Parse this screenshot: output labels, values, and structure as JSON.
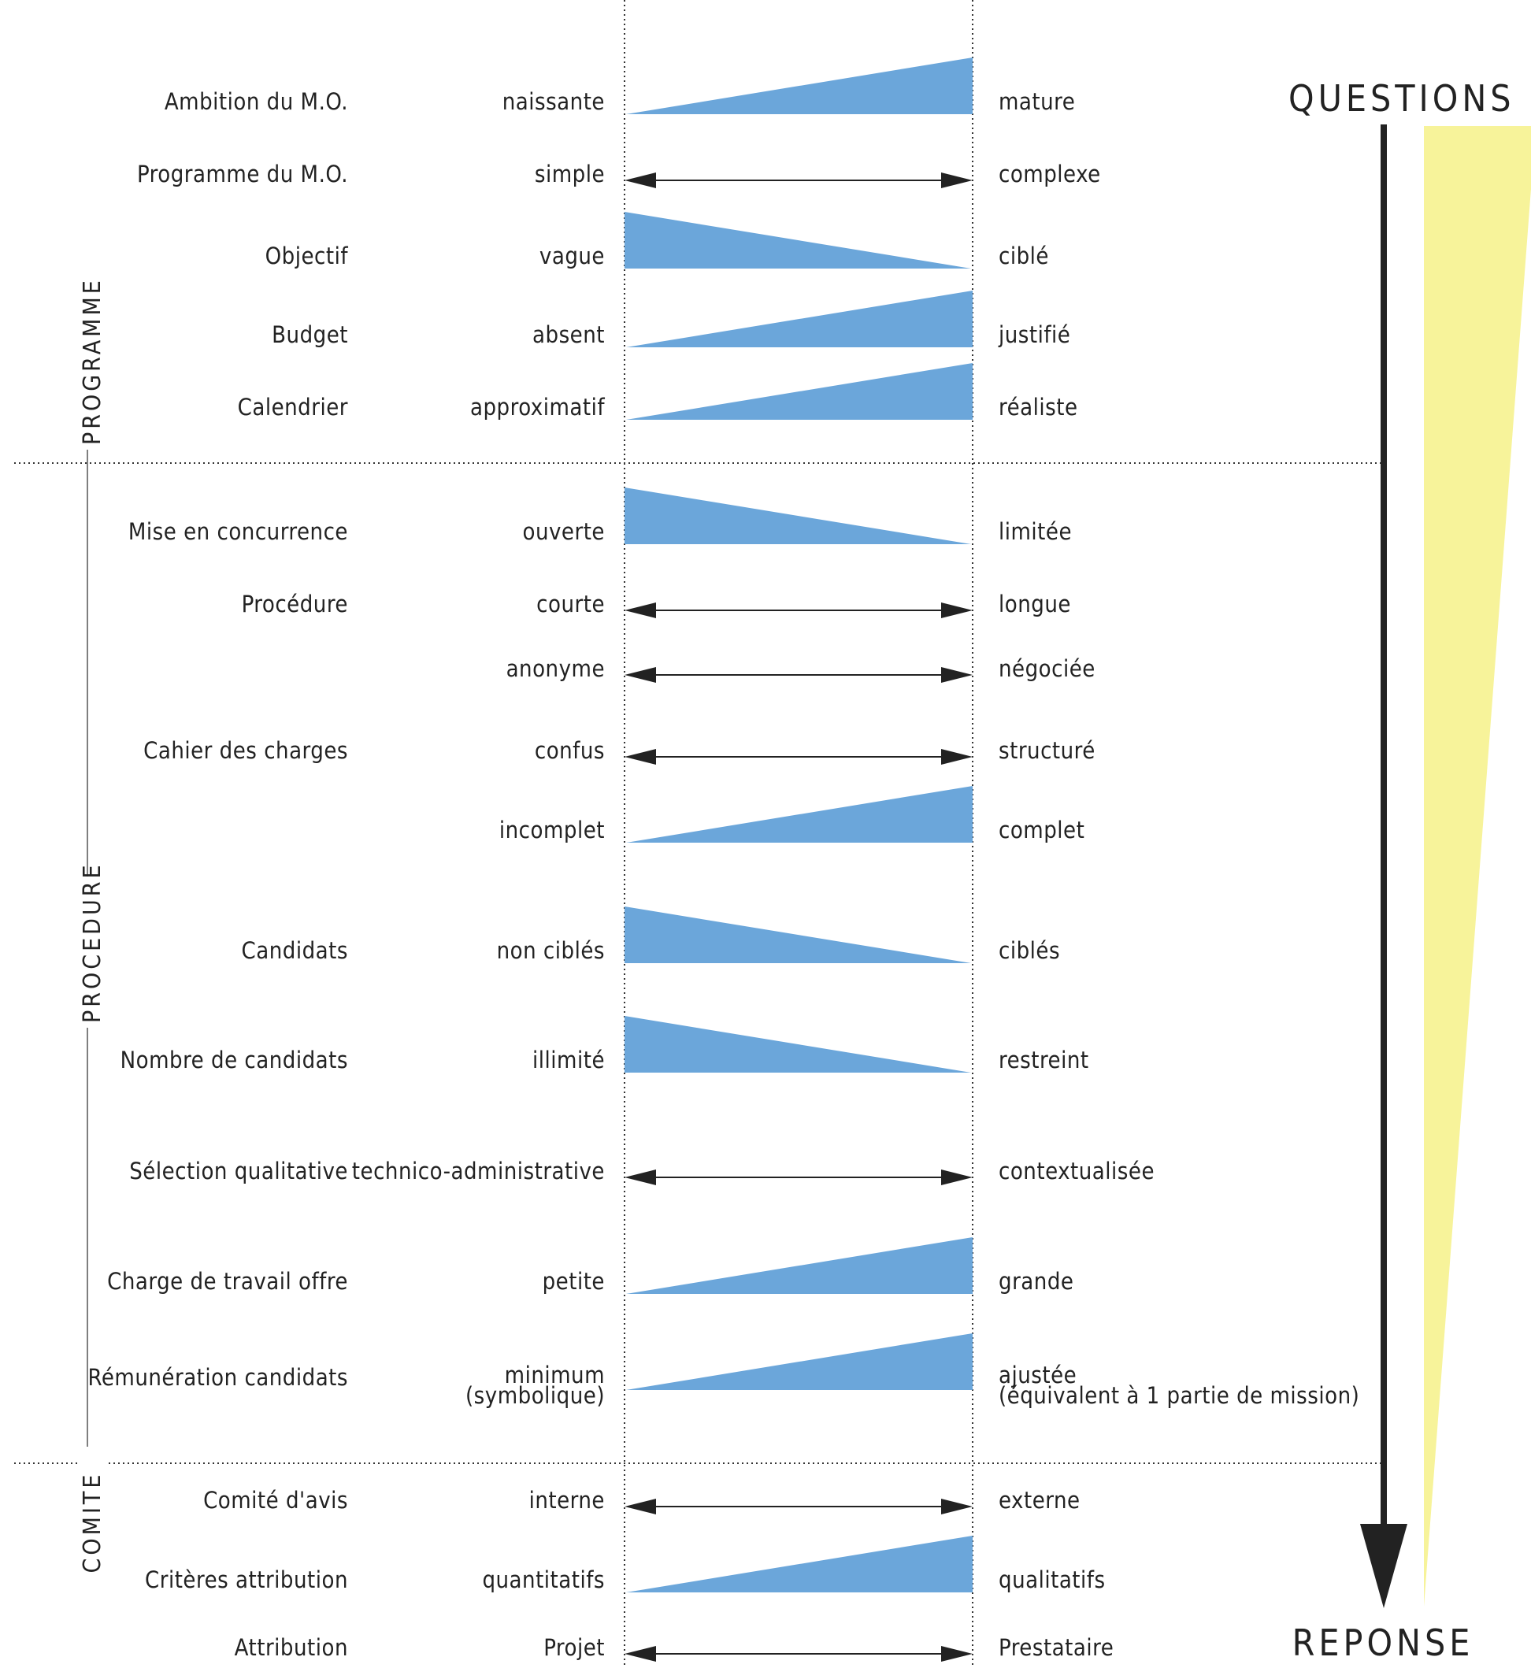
{
  "colors": {
    "wedge": "#6ba6da",
    "cone": "#f7f39a",
    "line": "#222222"
  },
  "axis": {
    "top": "QUESTIONS",
    "bottom": "REPONSE"
  },
  "sections": [
    {
      "key": "programme",
      "label": "PROGRAMME"
    },
    {
      "key": "procedure",
      "label": "PROCEDURE"
    },
    {
      "key": "comite",
      "label": "COMITE"
    }
  ],
  "rows": [
    {
      "criterion": "Ambition du M.O.",
      "left": "naissante",
      "right": "mature",
      "shape": "increasing"
    },
    {
      "criterion": "Programme du M.O.",
      "left": "simple",
      "right": "complexe",
      "shape": "double-arrow"
    },
    {
      "criterion": "Objectif",
      "left": "vague",
      "right": "ciblé",
      "shape": "decreasing"
    },
    {
      "criterion": "Budget",
      "left": "absent",
      "right": "justifié",
      "shape": "increasing"
    },
    {
      "criterion": "Calendrier",
      "left": "approximatif",
      "right": "réaliste",
      "shape": "increasing"
    },
    {
      "criterion": "Mise en concurrence",
      "left": "ouverte",
      "right": "limitée",
      "shape": "decreasing"
    },
    {
      "criterion": "Procédure",
      "left": "courte",
      "right": "longue",
      "shape": "double-arrow"
    },
    {
      "criterion": "",
      "left": "anonyme",
      "right": "négociée",
      "shape": "double-arrow"
    },
    {
      "criterion": "Cahier des charges",
      "left": "confus",
      "right": "structuré",
      "shape": "double-arrow"
    },
    {
      "criterion": "",
      "left": "incomplet",
      "right": "complet",
      "shape": "increasing"
    },
    {
      "criterion": "Candidats",
      "left": "non ciblés",
      "right": "ciblés",
      "shape": "decreasing"
    },
    {
      "criterion": "Nombre de candidats",
      "left": "illimité",
      "right": "restreint",
      "shape": "decreasing"
    },
    {
      "criterion": "Sélection qualitative",
      "left": "technico-administrative",
      "right": "contextualisée",
      "shape": "double-arrow"
    },
    {
      "criterion": "Charge de travail offre",
      "left": "petite",
      "right": "grande",
      "shape": "increasing"
    },
    {
      "criterion": "Rémunération candidats",
      "left": "minimum\n(symbolique)",
      "right": "ajustée\n(équivalent à 1 partie de mission)",
      "shape": "increasing"
    },
    {
      "criterion": "Comité d'avis",
      "left": "interne",
      "right": "externe",
      "shape": "double-arrow"
    },
    {
      "criterion": "Critères attribution",
      "left": "quantitatifs",
      "right": "qualitatifs",
      "shape": "increasing"
    },
    {
      "criterion": "Attribution",
      "left": "Projet",
      "right": "Prestataire",
      "shape": "double-arrow"
    }
  ]
}
